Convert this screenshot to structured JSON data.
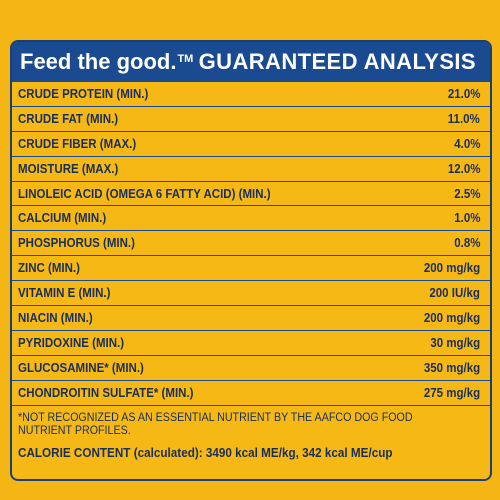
{
  "header": {
    "tagline": "Feed the good.",
    "trademark": "TM",
    "title": "GUARANTEED ANALYSIS"
  },
  "rows": [
    {
      "name": "CRUDE PROTEIN (MIN.)",
      "value": "21.0%"
    },
    {
      "name": "CRUDE FAT (MIN.)",
      "value": "11.0%"
    },
    {
      "name": "CRUDE FIBER (MAX.)",
      "value": "4.0%"
    },
    {
      "name": "MOISTURE (MAX.)",
      "value": "12.0%"
    },
    {
      "name": "LINOLEIC ACID (OMEGA 6 FATTY ACID) (MIN.)",
      "value": "2.5%"
    },
    {
      "name": "CALCIUM (MIN.)",
      "value": "1.0%"
    },
    {
      "name": "PHOSPHORUS (MIN.)",
      "value": "0.8%"
    },
    {
      "name": "ZINC (MIN.)",
      "value": "200 mg/kg"
    },
    {
      "name": "VITAMIN E (MIN.)",
      "value": "200 IU/kg"
    },
    {
      "name": "NIACIN (MIN.)",
      "value": "200 mg/kg"
    },
    {
      "name": "PYRIDOXINE (MIN.)",
      "value": "30 mg/kg"
    },
    {
      "name": "GLUCOSAMINE* (MIN.)",
      "value": "350 mg/kg"
    },
    {
      "name": "CHONDROITIN SULFATE* (MIN.)",
      "value": "275 mg/kg"
    }
  ],
  "footnote": "*NOT RECOGNIZED AS AN ESSENTIAL NUTRIENT BY THE AAFCO DOG FOOD NUTRIENT PROFILES.",
  "calorie": {
    "label": "CALORIE CONTENT",
    "text": "(calculated): 3490 kcal ME/kg, 342 kcal ME/cup"
  },
  "colors": {
    "background": "#f5b514",
    "header": "#1a4a8f",
    "text": "#1a2f55"
  }
}
